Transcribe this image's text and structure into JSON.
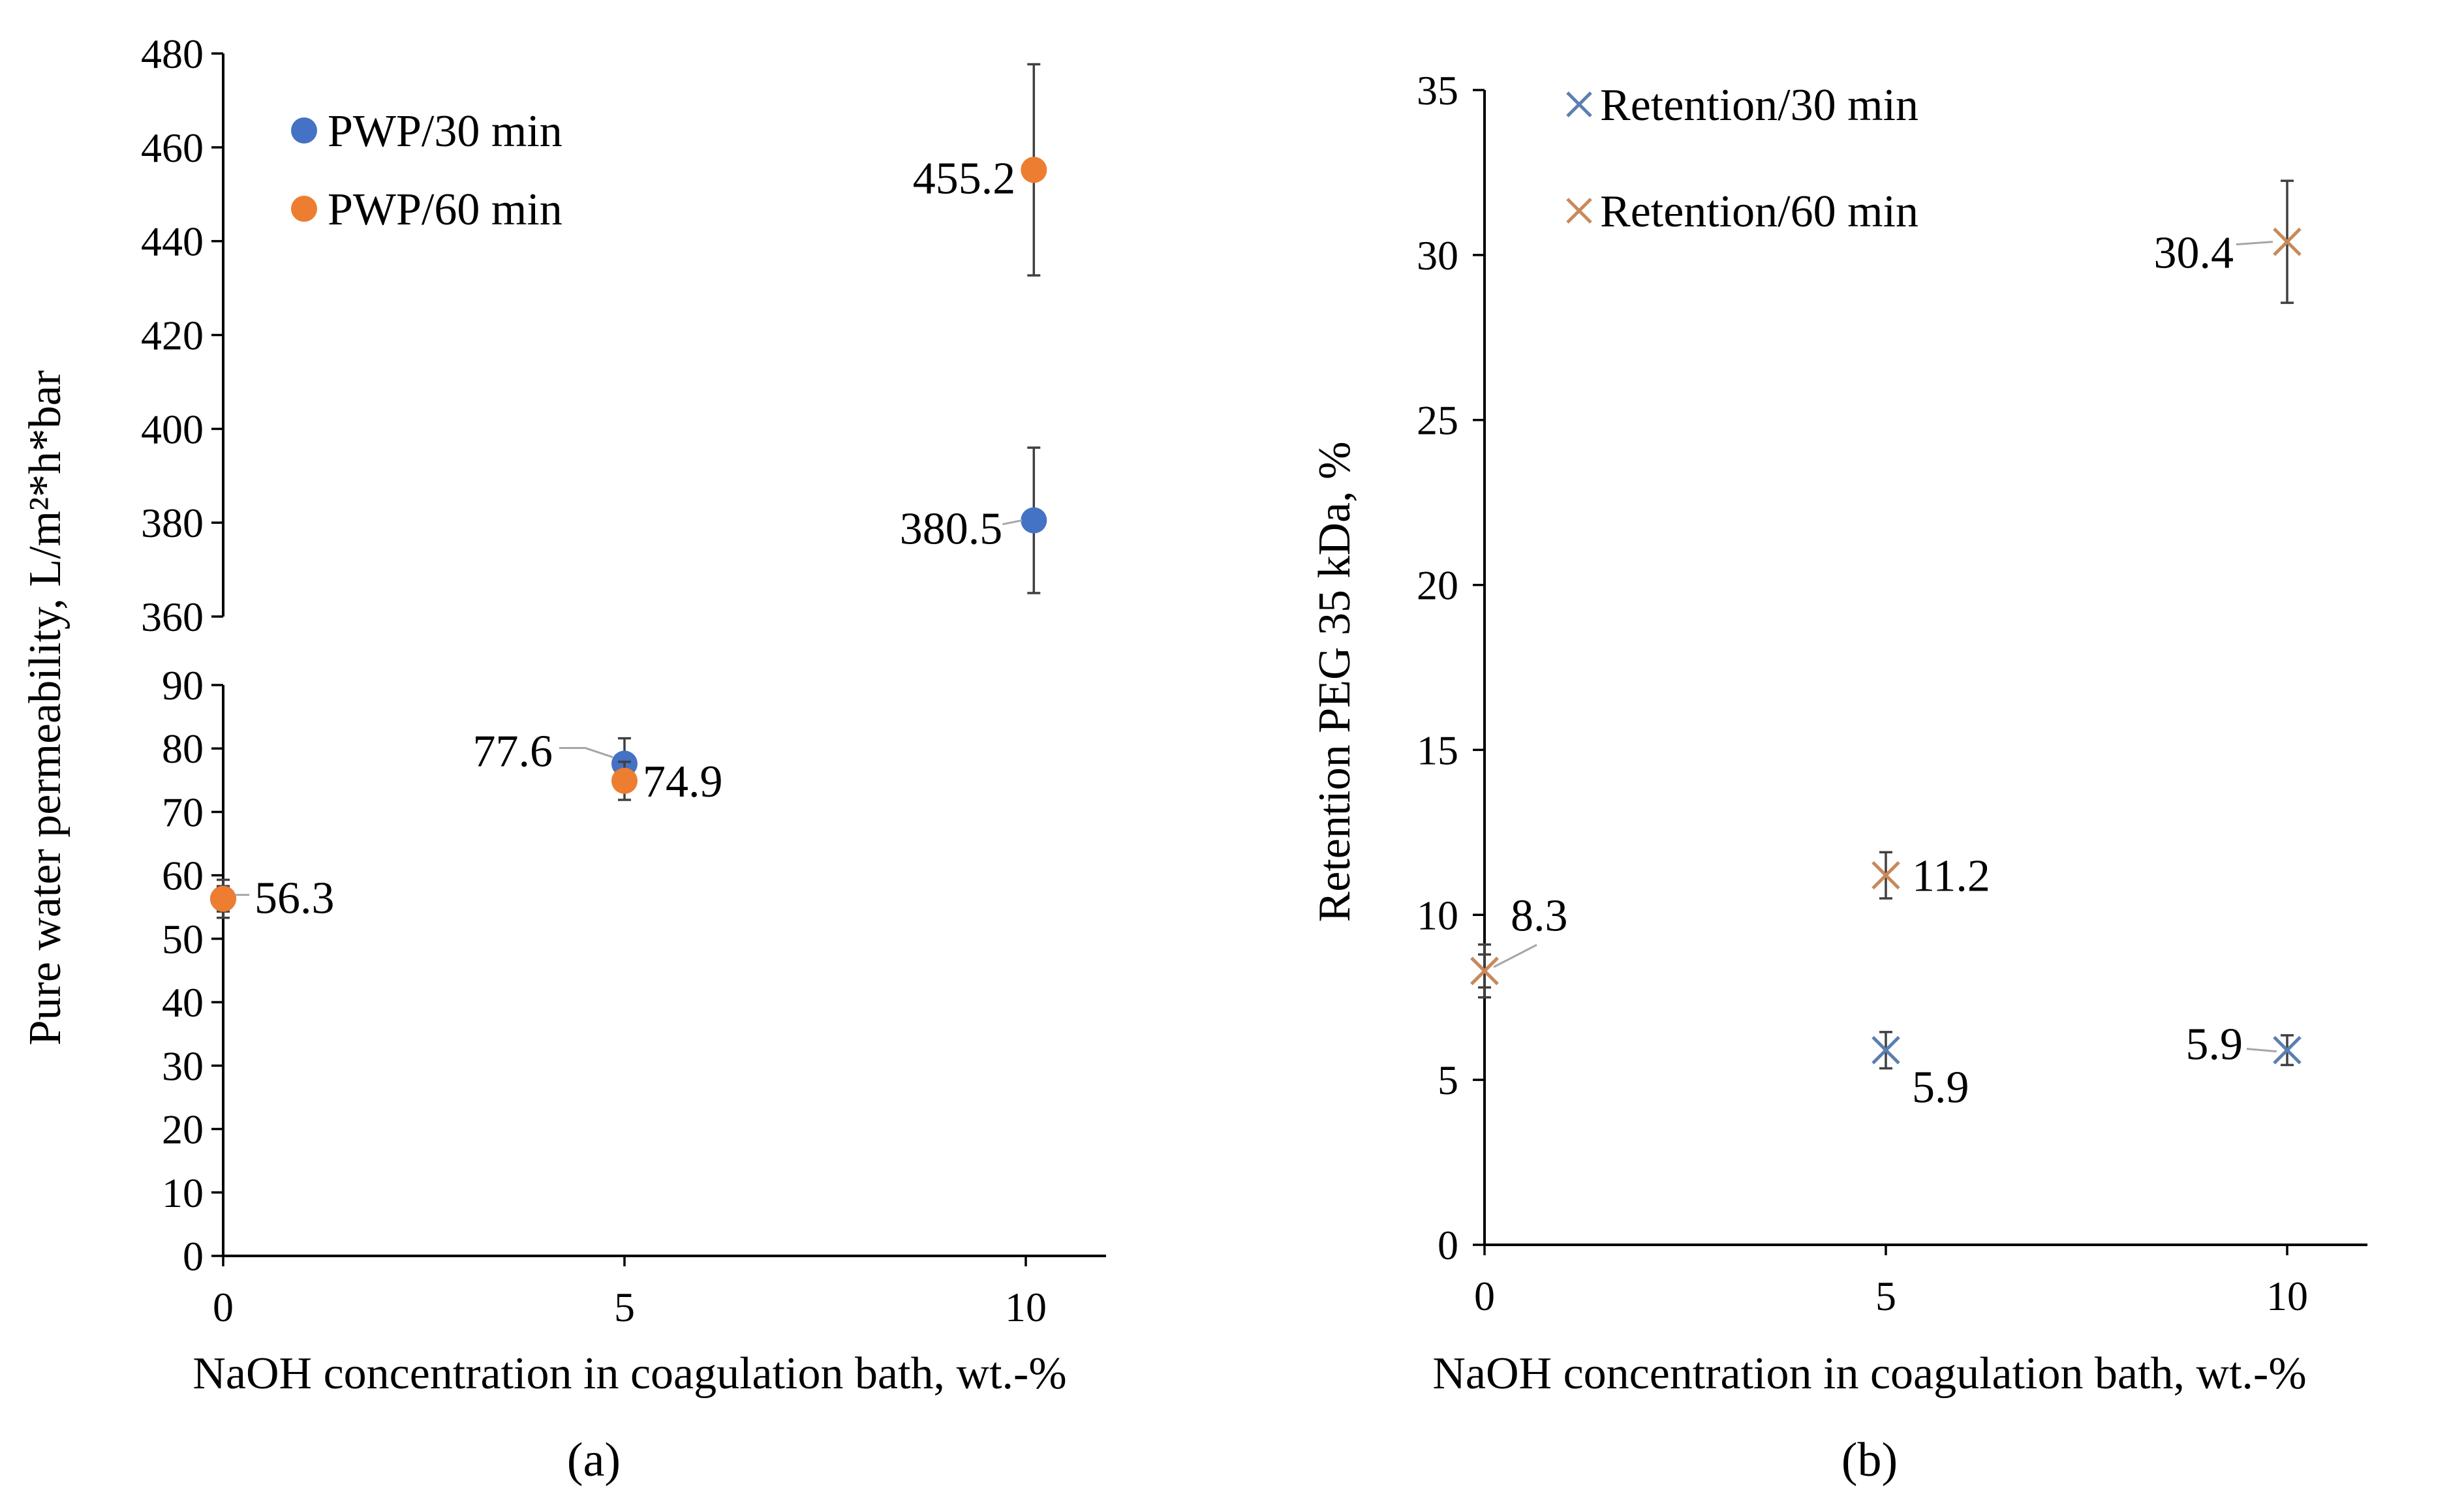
{
  "chart_data": [
    {
      "panel": "a",
      "type": "scatter",
      "caption": "(a)",
      "xlabel": "NaOH concentration in coagulation bath, wt.-%",
      "ylabel": "Pure water permeability,  L/m²*h*bar",
      "xlim": [
        0,
        11
      ],
      "x_ticks": [
        "0",
        "5",
        "10"
      ],
      "y_axis_break": true,
      "ylim_lower": [
        0,
        90
      ],
      "ylim_upper": [
        360,
        480
      ],
      "y_ticks_lower": [
        "0",
        "10",
        "20",
        "30",
        "40",
        "50",
        "60",
        "70",
        "80",
        "90"
      ],
      "y_ticks_upper": [
        "360",
        "380",
        "400",
        "420",
        "440",
        "460",
        "480"
      ],
      "series": [
        {
          "name": "PWP/30 min",
          "color": "#4472c4",
          "marker": "circle",
          "points": [
            {
              "x": 0,
              "y": 56.3,
              "err": 3,
              "label": ""
            },
            {
              "x": 5,
              "y": 77.6,
              "err": 4,
              "label": "77.6"
            },
            {
              "x": 10.1,
              "y": 380.5,
              "err": 15.5,
              "label": "380.5"
            }
          ]
        },
        {
          "name": "PWP/60 min",
          "color": "#ed7d31",
          "marker": "circle",
          "points": [
            {
              "x": 0,
              "y": 56.3,
              "err": 2,
              "label": "56.3"
            },
            {
              "x": 5,
              "y": 74.9,
              "err": 3,
              "label": "74.9"
            },
            {
              "x": 10.1,
              "y": 455.2,
              "err": 22.5,
              "label": "455.2"
            }
          ]
        }
      ]
    },
    {
      "panel": "b",
      "type": "scatter",
      "caption": "(b)",
      "xlabel": "NaOH concentration in coagulation bath, wt.-%",
      "ylabel": "Retention PEG 35 kDa, %",
      "xlim": [
        0,
        11
      ],
      "ylim": [
        0,
        35
      ],
      "x_ticks": [
        "0",
        "5",
        "10"
      ],
      "y_ticks": [
        "0",
        "5",
        "10",
        "15",
        "20",
        "25",
        "30",
        "35"
      ],
      "series": [
        {
          "name": "Retention/30 min",
          "color": "#5b7fb0",
          "marker": "x",
          "points": [
            {
              "x": 0,
              "y": 8.3,
              "err": 0.8,
              "label": "8.3"
            },
            {
              "x": 5,
              "y": 5.9,
              "err": 0.55,
              "label": "5.9"
            },
            {
              "x": 10,
              "y": 5.9,
              "err": 0.45,
              "label": "5.9"
            }
          ]
        },
        {
          "name": "Retention/60 min",
          "color": "#c8895a",
          "marker": "x",
          "points": [
            {
              "x": 0,
              "y": 8.3,
              "err": 0.5,
              "label": ""
            },
            {
              "x": 5,
              "y": 11.2,
              "err": 0.7,
              "label": "11.2"
            },
            {
              "x": 10,
              "y": 30.4,
              "err": 1.85,
              "label": "30.4"
            }
          ]
        }
      ]
    }
  ]
}
